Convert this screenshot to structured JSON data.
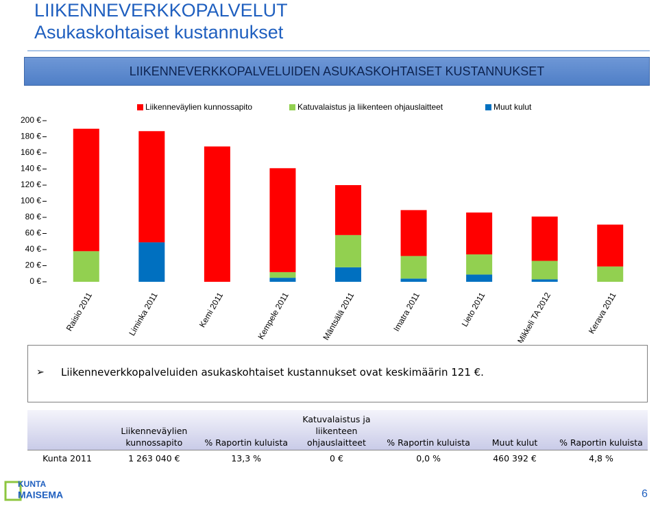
{
  "header": {
    "title": "LIIKENNEVERKKOPALVELUT",
    "subtitle": "Asukaskohtaiset kustannukset"
  },
  "chart_data": {
    "type": "stacked_bar",
    "title": "LIIKENNEVERKKOPALVELUIDEN ASUKASKOHTAISET KUSTANNUKSET",
    "categories": [
      "Raisio 2011",
      "Liminka 2011",
      "Kemi 2011",
      "Kempele 2011",
      "Mäntsälä 2011",
      "Imatra 2011",
      "Lieto 2011",
      "Mikkeli TA 2012",
      "Kerava 2011"
    ],
    "series": [
      {
        "name": "Liikenneväylien kunnossapito",
        "color": "#ff0000",
        "values": [
          152,
          138,
          168,
          129,
          62,
          57,
          52,
          55,
          52
        ]
      },
      {
        "name": "Katuvalaistus ja liikenteen ohjauslaitteet",
        "color": "#92d050",
        "values": [
          38,
          0,
          0,
          7,
          40,
          28,
          25,
          23,
          19
        ]
      },
      {
        "name": "Muut kulut",
        "color": "#0070c0",
        "values": [
          0,
          49,
          0,
          5,
          18,
          4,
          9,
          3,
          0
        ]
      }
    ],
    "ylim": [
      0,
      200
    ],
    "yticks": [
      {
        "value": 0,
        "label": "0 €"
      },
      {
        "value": 20,
        "label": "20 €"
      },
      {
        "value": 40,
        "label": "40 €"
      },
      {
        "value": 60,
        "label": "60 €"
      },
      {
        "value": 80,
        "label": "80 €"
      },
      {
        "value": 100,
        "label": "100 €"
      },
      {
        "value": 120,
        "label": "120 €"
      },
      {
        "value": 140,
        "label": "140 €"
      },
      {
        "value": 160,
        "label": "160 €"
      },
      {
        "value": 180,
        "label": "180 €"
      },
      {
        "value": 200,
        "label": "200 €"
      }
    ],
    "grid": false,
    "legend": "top"
  },
  "bullet": "Liikenneverkkopalveluiden asukaskohtaiset kustannukset ovat keskimäärin 121 €.",
  "table": {
    "columns": [
      "Liikenneväylien kunnossapito",
      "% Raportin kuluista",
      "Katuvalaistus ja liikenteen ohjauslaitteet",
      "% Raportin kuluista",
      "Muut kulut",
      "% Raportin kuluista"
    ],
    "rows": [
      {
        "label": "Kunta 2011",
        "cells": [
          "1 263 040 €",
          "13,3 %",
          "0 €",
          "0,0 %",
          "460 392 €",
          "4,8 %"
        ]
      }
    ]
  },
  "footer": {
    "logo": [
      "KUNTA",
      "MAISEMA"
    ],
    "page": "6"
  }
}
